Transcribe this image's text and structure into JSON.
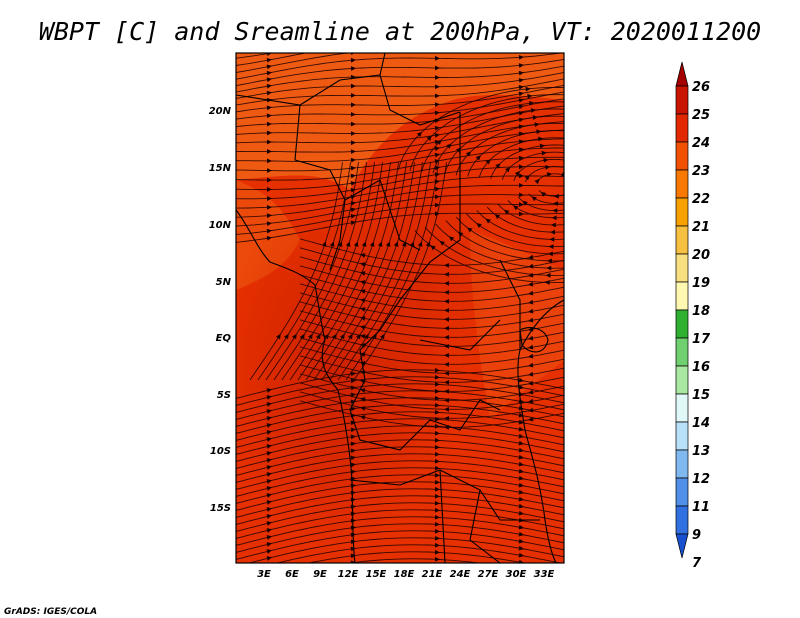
{
  "title": "WBPT [C] and Sreamline at 200hPa, VT: 2020011200",
  "credit": "GrADS: IGES/COLA",
  "map": {
    "lat_labels": [
      "20N",
      "15N",
      "10N",
      "5N",
      "EQ",
      "5S",
      "10S",
      "15S"
    ],
    "lon_labels": [
      "3E",
      "6E",
      "9E",
      "12E",
      "15E",
      "18E",
      "21E",
      "24E",
      "27E",
      "30E",
      "33E"
    ]
  },
  "colorbar": {
    "levels": [
      "26",
      "25",
      "24",
      "23",
      "22",
      "21",
      "20",
      "19",
      "18",
      "17",
      "16",
      "15",
      "14",
      "13",
      "12",
      "11",
      "9",
      "7"
    ],
    "colors": [
      "#a50000",
      "#c81400",
      "#e22800",
      "#f05000",
      "#f87800",
      "#f8a000",
      "#f8c040",
      "#f8e080",
      "#fff8b0",
      "#30b030",
      "#70d070",
      "#a8e8a0",
      "#e0f8f8",
      "#b8e0f8",
      "#80b8f0",
      "#5090e8",
      "#3070e0",
      "#1850d0"
    ]
  },
  "chart_data": {
    "type": "heatmap",
    "title": "WBPT [C] and Sreamline at 200hPa, VT: 2020011200",
    "variable": "WBPT [C] with 200hPa streamlines",
    "valid_time": "2020011200",
    "lon_range": [
      "0E",
      "35E"
    ],
    "lat_range": [
      "20S",
      "24N"
    ],
    "field_summary": "Values mostly 23-25 C; 24-25 C over central Africa, 23-24 C in the northern part",
    "colorbar_levels": [
      26,
      25,
      24,
      23,
      22,
      21,
      20,
      19,
      18,
      17,
      16,
      15,
      14,
      13,
      12,
      11,
      9,
      7
    ]
  }
}
